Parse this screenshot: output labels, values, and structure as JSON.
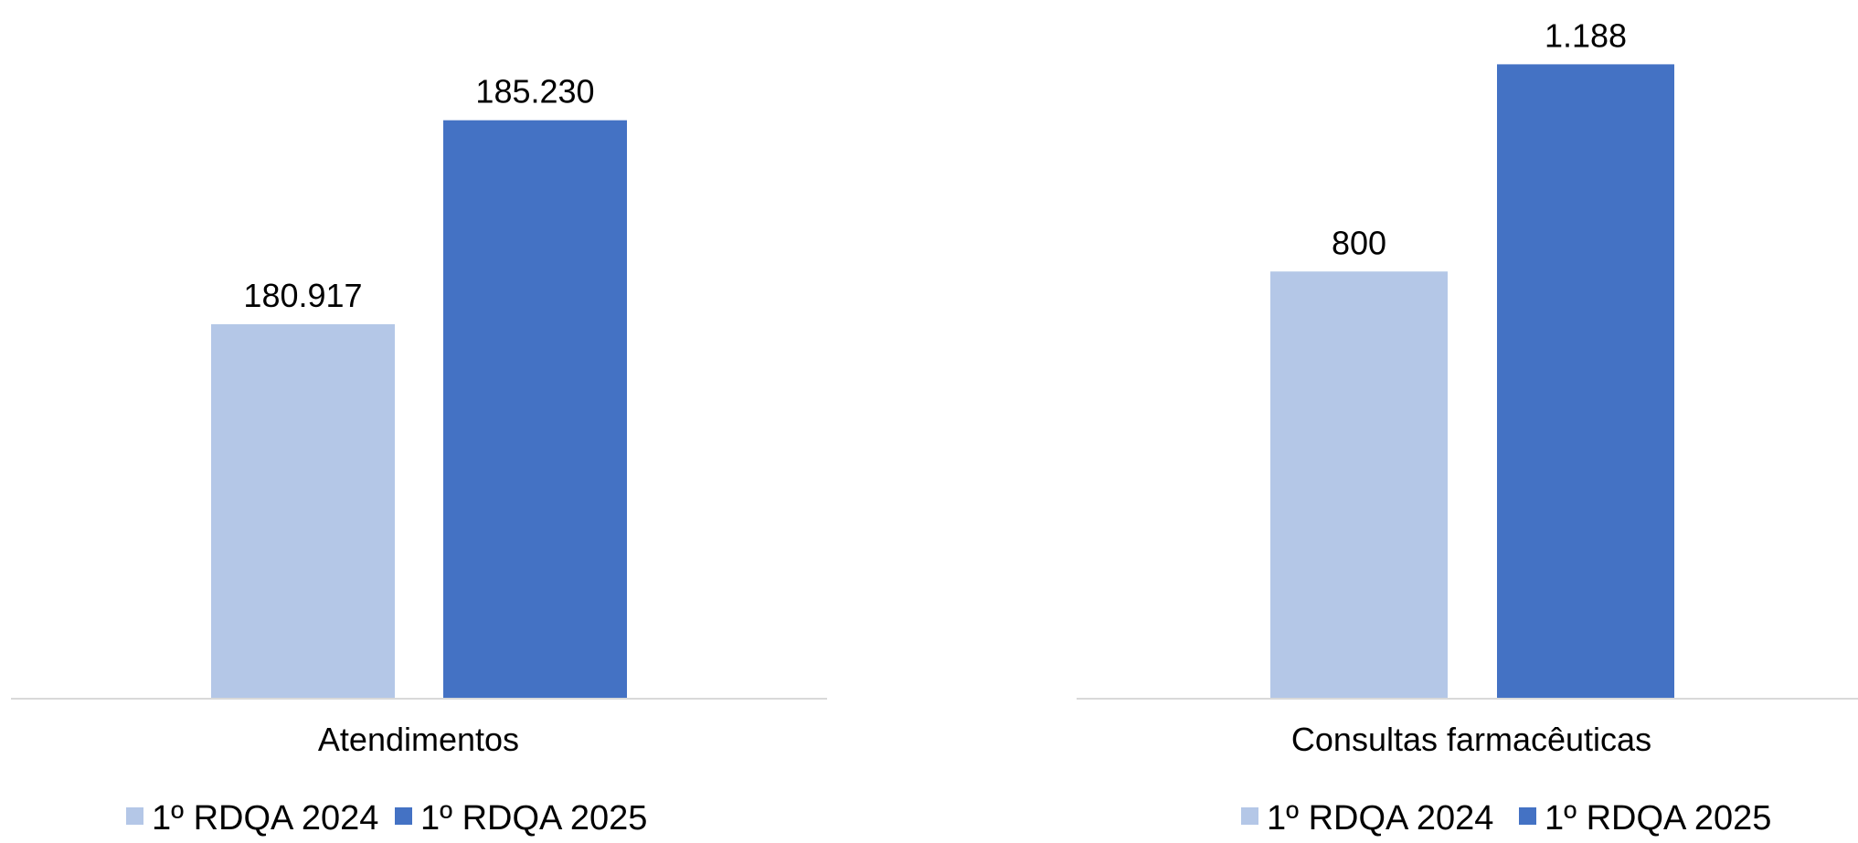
{
  "chart_data": [
    {
      "type": "bar",
      "categories": [
        "Atendimentos"
      ],
      "series": [
        {
          "name": "1º RDQA 2024",
          "values": [
            180917
          ],
          "color": "#b4c7e7",
          "label": "180.917"
        },
        {
          "name": "1º RDQA 2025",
          "values": [
            185230
          ],
          "color": "#4472c4",
          "label": "185.230"
        }
      ],
      "ylim": [
        173000,
        187000
      ],
      "legend": "bottom",
      "grid": false
    },
    {
      "type": "bar",
      "categories": [
        "Consultas farmacêuticas"
      ],
      "series": [
        {
          "name": "1º RDQA 2024",
          "values": [
            800
          ],
          "color": "#b4c7e7",
          "label": "800"
        },
        {
          "name": "1º RDQA 2025",
          "values": [
            1188
          ],
          "color": "#4472c4",
          "label": "1.188"
        }
      ],
      "ylim": [
        0,
        1240
      ],
      "legend": "bottom",
      "grid": false
    }
  ]
}
